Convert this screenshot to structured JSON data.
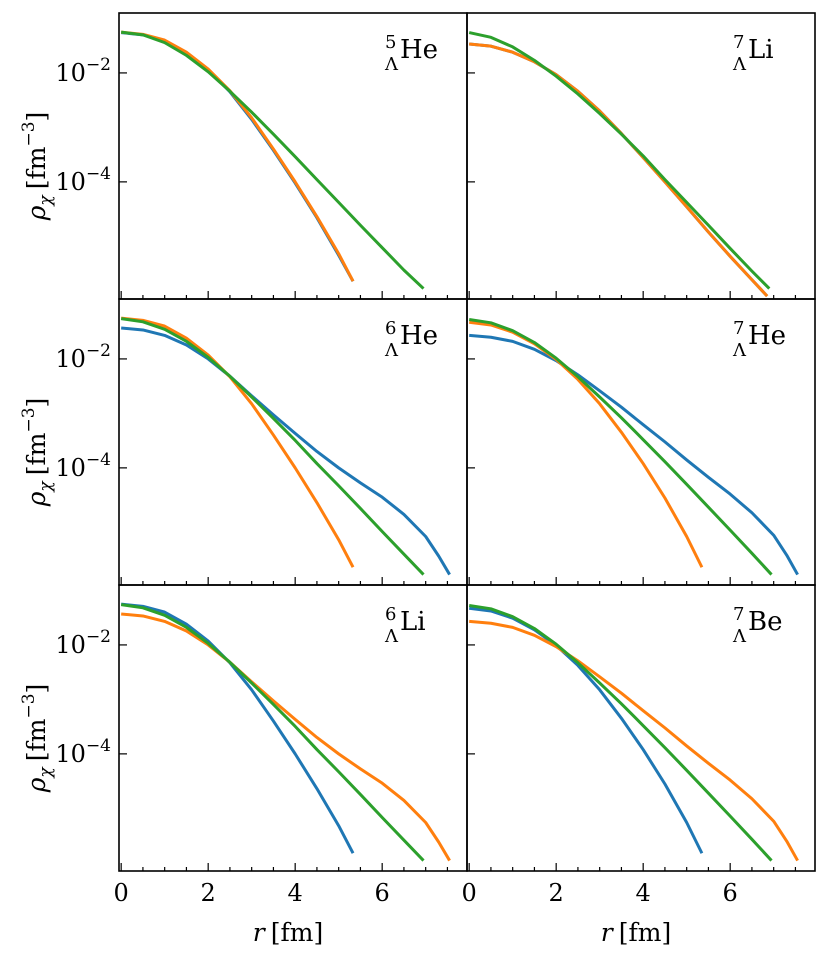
{
  "colors": {
    "blue": "#1f77b4",
    "orange": "#ff7f0e",
    "green": "#2ca02c",
    "axes": "#000000"
  },
  "chart_data": [
    {
      "type": "line",
      "nucleus": {
        "mass_number": "5",
        "sub": "Λ",
        "element": "He"
      },
      "xlabel": "",
      "ylabel": "ρχ [fm−3]",
      "ylabel_parts": {
        "sym": "ρ",
        "sub": "χ",
        "unit": "[fm",
        "exp": "−3",
        "close": "]"
      },
      "yticks": [
        {
          "v": 0.01,
          "base": "10",
          "exp": "−2"
        },
        {
          "v": 0.0001,
          "base": "10",
          "exp": "−4"
        }
      ],
      "xlim": [
        -0.05,
        7.95
      ],
      "ylim_log10": [
        -6.15,
        -0.9
      ],
      "yscale": "log",
      "series": [
        {
          "color": "blue",
          "x": [
            0,
            0.5,
            1,
            1.5,
            2,
            2.5,
            3,
            3.5,
            4,
            4.5,
            5,
            5.33
          ],
          "y": [
            0.055,
            0.05,
            0.039,
            0.023,
            0.0115,
            0.0045,
            0.0014,
            0.00038,
            9.5e-05,
            2.2e-05,
            4.5e-06,
            1.5e-06
          ]
        },
        {
          "color": "orange",
          "x": [
            0,
            0.5,
            1,
            1.5,
            2,
            2.5,
            3,
            3.5,
            4,
            4.5,
            5,
            5.33
          ],
          "y": [
            0.056,
            0.051,
            0.04,
            0.024,
            0.0118,
            0.0047,
            0.0015,
            0.0004,
            0.0001,
            2.3e-05,
            4.8e-06,
            1.5e-06
          ]
        },
        {
          "color": "green",
          "x": [
            0,
            0.5,
            1,
            1.5,
            2,
            2.5,
            3,
            3.5,
            4,
            4.5,
            5,
            5.5,
            6,
            6.5,
            6.95
          ],
          "y": [
            0.056,
            0.05,
            0.036,
            0.021,
            0.0105,
            0.0046,
            0.0019,
            0.00075,
            0.00029,
            0.00011,
            4.2e-05,
            1.6e-05,
            6.2e-06,
            2.4e-06,
            1.1e-06
          ]
        }
      ]
    },
    {
      "type": "line",
      "nucleus": {
        "mass_number": "7",
        "sub": "Λ",
        "element": "Li"
      },
      "xlabel": "",
      "ylabel": "",
      "xlim": [
        -0.05,
        7.95
      ],
      "ylim_log10": [
        -6.15,
        -0.9
      ],
      "yscale": "log",
      "series": [
        {
          "color": "blue",
          "x": [
            0,
            0.5,
            1,
            1.5,
            2,
            2.5,
            3,
            3.5,
            4,
            4.5,
            5,
            5.5,
            6,
            6.5,
            6.85
          ],
          "y": [
            0.034,
            0.031,
            0.024,
            0.016,
            0.0093,
            0.0046,
            0.002,
            0.00077,
            0.00028,
            0.0001,
            3.5e-05,
            1.2e-05,
            4.3e-06,
            1.6e-06,
            8e-07
          ]
        },
        {
          "color": "orange",
          "x": [
            0,
            0.5,
            1,
            1.5,
            2,
            2.5,
            3,
            3.5,
            4,
            4.5,
            5,
            5.5,
            6,
            6.5,
            6.85
          ],
          "y": [
            0.034,
            0.031,
            0.024,
            0.016,
            0.0093,
            0.0046,
            0.002,
            0.00077,
            0.00028,
            0.0001,
            3.5e-05,
            1.2e-05,
            4.3e-06,
            1.6e-06,
            8e-07
          ]
        },
        {
          "color": "green",
          "x": [
            0,
            0.5,
            1,
            1.5,
            2,
            2.5,
            3,
            3.5,
            4,
            4.5,
            5,
            5.5,
            6,
            6.5,
            6.9
          ],
          "y": [
            0.055,
            0.045,
            0.03,
            0.017,
            0.0087,
            0.0041,
            0.0018,
            0.00075,
            0.0003,
            0.00011,
            4.2e-05,
            1.6e-05,
            6e-06,
            2.3e-06,
            1.1e-06
          ]
        }
      ]
    },
    {
      "type": "line",
      "nucleus": {
        "mass_number": "6",
        "sub": "Λ",
        "element": "He"
      },
      "xlabel": "",
      "ylabel": "ρχ [fm−3]",
      "ylabel_parts": {
        "sym": "ρ",
        "sub": "χ",
        "unit": "[fm",
        "exp": "−3",
        "close": "]"
      },
      "yticks": [
        {
          "v": 0.01,
          "base": "10",
          "exp": "−2"
        },
        {
          "v": 0.0001,
          "base": "10",
          "exp": "−4"
        }
      ],
      "xlim": [
        -0.05,
        7.95
      ],
      "ylim_log10": [
        -6.15,
        -0.9
      ],
      "yscale": "log",
      "series": [
        {
          "color": "blue",
          "x": [
            0,
            0.5,
            1,
            1.5,
            2,
            2.5,
            3,
            3.5,
            4,
            4.5,
            5,
            5.5,
            6,
            6.5,
            7,
            7.3,
            7.55
          ],
          "y": [
            0.037,
            0.034,
            0.027,
            0.018,
            0.01,
            0.0048,
            0.0021,
            0.00094,
            0.00043,
            0.0002,
            0.0001,
            5.3e-05,
            2.9e-05,
            1.4e-05,
            5.5e-06,
            2.4e-06,
            1.1e-06
          ]
        },
        {
          "color": "orange",
          "x": [
            0,
            0.5,
            1,
            1.5,
            2,
            2.5,
            3,
            3.5,
            4,
            4.5,
            5,
            5.33
          ],
          "y": [
            0.056,
            0.051,
            0.04,
            0.024,
            0.0118,
            0.0047,
            0.0015,
            0.0004,
            0.0001,
            2.3e-05,
            4.8e-06,
            1.5e-06
          ]
        },
        {
          "color": "green",
          "x": [
            0,
            0.5,
            1,
            1.5,
            2,
            2.5,
            3,
            3.5,
            4,
            4.5,
            5,
            5.5,
            6,
            6.5,
            6.95
          ],
          "y": [
            0.055,
            0.048,
            0.035,
            0.021,
            0.0107,
            0.0048,
            0.002,
            0.00081,
            0.00032,
            0.00012,
            4.7e-05,
            1.8e-05,
            6.8e-06,
            2.6e-06,
            1.1e-06
          ]
        }
      ]
    },
    {
      "type": "line",
      "nucleus": {
        "mass_number": "7",
        "sub": "Λ",
        "element": "He"
      },
      "xlabel": "",
      "ylabel": "",
      "xlim": [
        -0.05,
        7.95
      ],
      "ylim_log10": [
        -6.15,
        -0.9
      ],
      "yscale": "log",
      "series": [
        {
          "color": "blue",
          "x": [
            0,
            0.5,
            1,
            1.5,
            2,
            2.5,
            3,
            3.5,
            4,
            4.5,
            5,
            5.5,
            6,
            6.5,
            7,
            7.3,
            7.55
          ],
          "y": [
            0.027,
            0.025,
            0.021,
            0.015,
            0.0093,
            0.0051,
            0.0026,
            0.0013,
            0.00062,
            0.0003,
            0.00014,
            6.7e-05,
            3.3e-05,
            1.5e-05,
            5.8e-06,
            2.5e-06,
            1.1e-06
          ]
        },
        {
          "color": "orange",
          "x": [
            0,
            0.5,
            1,
            1.5,
            2,
            2.5,
            3,
            3.5,
            4,
            4.5,
            5,
            5.35
          ],
          "y": [
            0.047,
            0.042,
            0.031,
            0.019,
            0.0098,
            0.0042,
            0.0015,
            0.00045,
            0.00012,
            2.8e-05,
            5.5e-06,
            1.5e-06
          ]
        },
        {
          "color": "green",
          "x": [
            0,
            0.5,
            1,
            1.5,
            2,
            2.5,
            3,
            3.5,
            4,
            4.5,
            5,
            5.5,
            6,
            6.5,
            6.95
          ],
          "y": [
            0.053,
            0.046,
            0.033,
            0.02,
            0.0103,
            0.0047,
            0.002,
            0.00083,
            0.00033,
            0.00013,
            5e-05,
            1.9e-05,
            7.2e-06,
            2.7e-06,
            1.1e-06
          ]
        }
      ]
    },
    {
      "type": "line",
      "nucleus": {
        "mass_number": "6",
        "sub": "Λ",
        "element": "Li"
      },
      "xlabel": "r [fm]",
      "ylabel": "ρχ [fm−3]",
      "xlabel_parts": {
        "sym": "r",
        "unit": "[fm]"
      },
      "ylabel_parts": {
        "sym": "ρ",
        "sub": "χ",
        "unit": "[fm",
        "exp": "−3",
        "close": "]"
      },
      "xticks": [
        "0",
        "2",
        "4",
        "6"
      ],
      "yticks": [
        {
          "v": 0.01,
          "base": "10",
          "exp": "−2"
        },
        {
          "v": 0.0001,
          "base": "10",
          "exp": "−4"
        }
      ],
      "xlim": [
        -0.05,
        7.95
      ],
      "ylim_log10": [
        -6.15,
        -0.9
      ],
      "yscale": "log",
      "series": [
        {
          "color": "blue",
          "x": [
            0,
            0.5,
            1,
            1.5,
            2,
            2.5,
            3,
            3.5,
            4,
            4.5,
            5,
            5.33
          ],
          "y": [
            0.056,
            0.051,
            0.04,
            0.024,
            0.0118,
            0.0047,
            0.0015,
            0.0004,
            0.0001,
            2.3e-05,
            4.8e-06,
            1.5e-06
          ]
        },
        {
          "color": "orange",
          "x": [
            0,
            0.5,
            1,
            1.5,
            2,
            2.5,
            3,
            3.5,
            4,
            4.5,
            5,
            5.5,
            6,
            6.5,
            7,
            7.3,
            7.55
          ],
          "y": [
            0.037,
            0.034,
            0.027,
            0.018,
            0.01,
            0.0048,
            0.0021,
            0.00094,
            0.00043,
            0.0002,
            0.0001,
            5.3e-05,
            2.9e-05,
            1.4e-05,
            5.5e-06,
            2.4e-06,
            1.1e-06
          ]
        },
        {
          "color": "green",
          "x": [
            0,
            0.5,
            1,
            1.5,
            2,
            2.5,
            3,
            3.5,
            4,
            4.5,
            5,
            5.5,
            6,
            6.5,
            6.95
          ],
          "y": [
            0.055,
            0.048,
            0.035,
            0.021,
            0.0107,
            0.0048,
            0.002,
            0.00081,
            0.00032,
            0.00012,
            4.7e-05,
            1.8e-05,
            6.8e-06,
            2.6e-06,
            1.1e-06
          ]
        }
      ]
    },
    {
      "type": "line",
      "nucleus": {
        "mass_number": "7",
        "sub": "Λ",
        "element": "Be"
      },
      "xlabel": "r [fm]",
      "ylabel": "",
      "xlabel_parts": {
        "sym": "r",
        "unit": "[fm]"
      },
      "xticks": [
        "0",
        "2",
        "4",
        "6"
      ],
      "xlim": [
        -0.05,
        7.95
      ],
      "ylim_log10": [
        -6.15,
        -0.9
      ],
      "yscale": "log",
      "series": [
        {
          "color": "blue",
          "x": [
            0,
            0.5,
            1,
            1.5,
            2,
            2.5,
            3,
            3.5,
            4,
            4.5,
            5,
            5.35
          ],
          "y": [
            0.047,
            0.042,
            0.031,
            0.019,
            0.0098,
            0.0042,
            0.0015,
            0.00045,
            0.00012,
            2.8e-05,
            5.5e-06,
            1.5e-06
          ]
        },
        {
          "color": "orange",
          "x": [
            0,
            0.5,
            1,
            1.5,
            2,
            2.5,
            3,
            3.5,
            4,
            4.5,
            5,
            5.5,
            6,
            6.5,
            7,
            7.3,
            7.55
          ],
          "y": [
            0.027,
            0.025,
            0.021,
            0.015,
            0.0093,
            0.0051,
            0.0026,
            0.0013,
            0.00062,
            0.0003,
            0.00014,
            6.7e-05,
            3.3e-05,
            1.5e-05,
            5.8e-06,
            2.5e-06,
            1.1e-06
          ]
        },
        {
          "color": "green",
          "x": [
            0,
            0.5,
            1,
            1.5,
            2,
            2.5,
            3,
            3.5,
            4,
            4.5,
            5,
            5.5,
            6,
            6.5,
            6.95
          ],
          "y": [
            0.053,
            0.046,
            0.033,
            0.02,
            0.0103,
            0.0047,
            0.002,
            0.00083,
            0.00033,
            0.00013,
            5e-05,
            1.9e-05,
            7.2e-06,
            2.7e-06,
            1.1e-06
          ]
        }
      ]
    }
  ]
}
